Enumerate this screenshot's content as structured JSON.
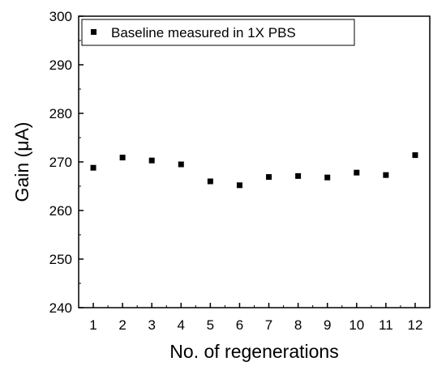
{
  "chart_data": {
    "type": "scatter",
    "title": "",
    "xlabel": "No. of regenerations",
    "ylabel": "Gain (μA)",
    "xlim": [
      0.5,
      12.5
    ],
    "ylim": [
      240,
      300
    ],
    "xticks": [
      1,
      2,
      3,
      4,
      5,
      6,
      7,
      8,
      9,
      10,
      11,
      12
    ],
    "yticks": [
      240,
      250,
      260,
      270,
      280,
      290,
      300
    ],
    "xtick_labels": [
      "1",
      "2",
      "3",
      "4",
      "5",
      "6",
      "7",
      "8",
      "9",
      "10",
      "11",
      "12"
    ],
    "ytick_labels": [
      "240",
      "250",
      "260",
      "270",
      "280",
      "290",
      "300"
    ],
    "grid": false,
    "legend_position": "top-left",
    "series": [
      {
        "name": "Baseline measured in 1X PBS",
        "marker": "square",
        "color": "#000000",
        "x": [
          1,
          2,
          3,
          4,
          5,
          6,
          7,
          8,
          9,
          10,
          11,
          12
        ],
        "y": [
          268.8,
          270.9,
          270.3,
          269.5,
          266.0,
          265.2,
          266.9,
          267.1,
          266.8,
          267.8,
          267.3,
          271.4
        ]
      }
    ]
  }
}
